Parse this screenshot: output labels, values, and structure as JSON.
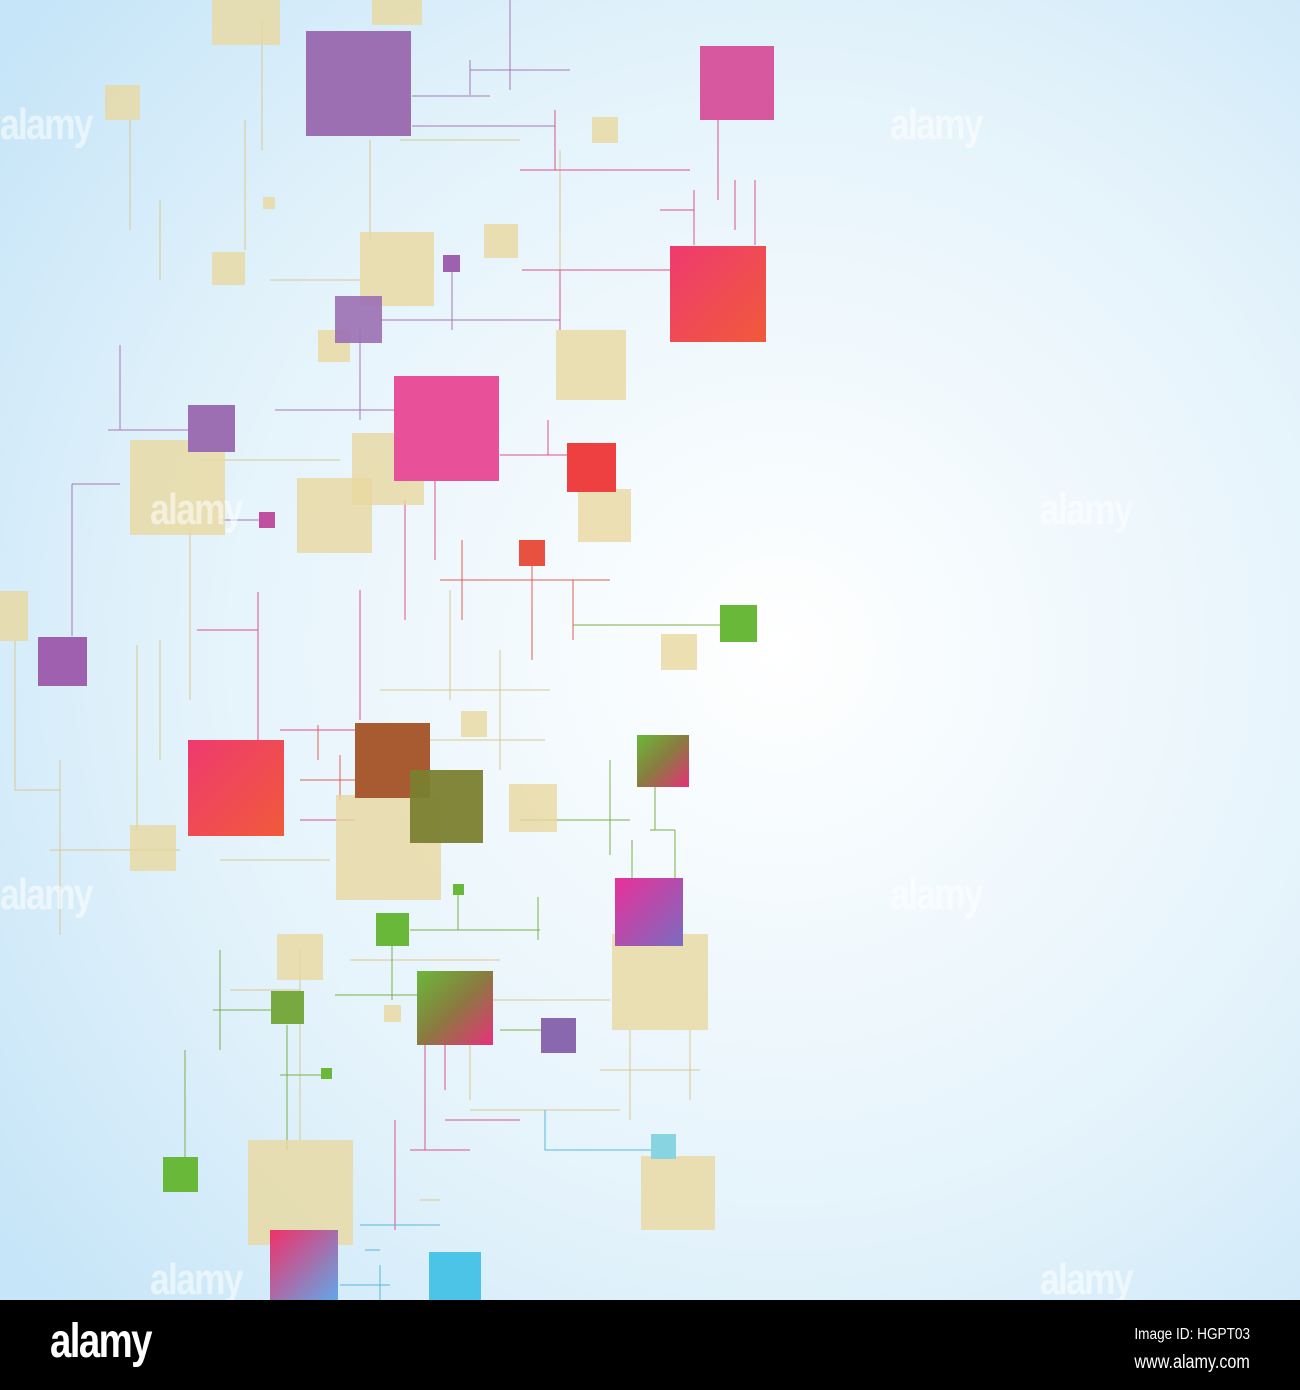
{
  "watermark": {
    "text": "alamy"
  },
  "footer": {
    "logo": "alamy",
    "image_id": "Image ID: HGPT03",
    "url": "www.alamy.com"
  },
  "colors": {
    "background_center": "#ffffff",
    "background_edge": "#c8e6f8",
    "tan": "#e8d8a0",
    "purple": "#9b6fb2",
    "pink": "#e8509a",
    "red": "#ef4a50",
    "green": "#6ab83a",
    "cyan": "#4cc4e8",
    "footer": "#000000"
  }
}
